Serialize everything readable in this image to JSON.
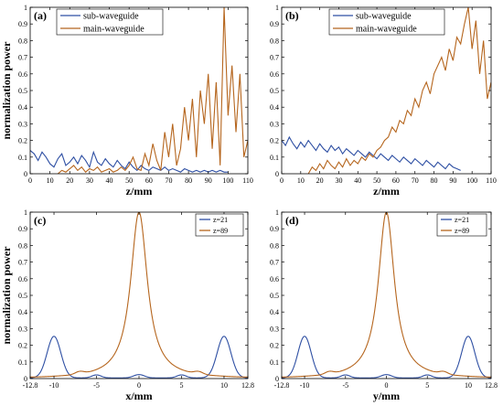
{
  "colors": {
    "blue": "#2e4fa3",
    "orange": "#b5651d",
    "red": "#e31a1c",
    "green": "#3aa93a"
  },
  "chart_data": [
    {
      "panel": "(a)",
      "type": "line",
      "xlabel": "z/mm",
      "ylabel": "normalization power",
      "xlim": [
        0,
        110
      ],
      "ylim": [
        0,
        1
      ],
      "xticks": [
        "0",
        "10",
        "20",
        "30",
        "40",
        "50",
        "60",
        "70",
        "80",
        "90",
        "100",
        "110"
      ],
      "yticks": [
        "0",
        "0.1",
        "0.2",
        "0.3",
        "0.4",
        "0.5",
        "0.6",
        "0.7",
        "0.8",
        "0.9",
        "1"
      ],
      "legend_position": "top-left",
      "series": [
        {
          "name": "sub-waveguide",
          "color": "#2e4fa3",
          "x": [
            0,
            2,
            4,
            6,
            8,
            10,
            12,
            14,
            16,
            18,
            20,
            22,
            24,
            26,
            28,
            30,
            32,
            34,
            36,
            38,
            40,
            42,
            44,
            46,
            48,
            50,
            52,
            54,
            56,
            58,
            60,
            62,
            64,
            66,
            68,
            70,
            72,
            74,
            76,
            78,
            80,
            82,
            84,
            86,
            88,
            90,
            92,
            94,
            96,
            98,
            100
          ],
          "y": [
            0.14,
            0.12,
            0.08,
            0.13,
            0.1,
            0.06,
            0.04,
            0.09,
            0.12,
            0.05,
            0.07,
            0.1,
            0.06,
            0.11,
            0.08,
            0.04,
            0.13,
            0.07,
            0.05,
            0.09,
            0.06,
            0.04,
            0.08,
            0.05,
            0.03,
            0.07,
            0.04,
            0.02,
            0.05,
            0.03,
            0.02,
            0.04,
            0.03,
            0.02,
            0.04,
            0.02,
            0.03,
            0.02,
            0.01,
            0.03,
            0.02,
            0.01,
            0.02,
            0.01,
            0.02,
            0.01,
            0.02,
            0.01,
            0.02,
            0.01,
            0.01
          ]
        },
        {
          "name": "main-waveguide",
          "color": "#b5651d",
          "x": [
            14,
            16,
            18,
            20,
            22,
            24,
            26,
            28,
            30,
            32,
            34,
            36,
            38,
            40,
            42,
            44,
            46,
            48,
            50,
            52,
            54,
            56,
            58,
            60,
            62,
            64,
            66,
            68,
            70,
            72,
            74,
            76,
            78,
            80,
            82,
            84,
            86,
            88,
            90,
            92,
            94,
            96,
            98,
            100,
            102,
            104,
            106,
            108,
            110
          ],
          "y": [
            0,
            0.02,
            0.01,
            0.03,
            0.05,
            0.02,
            0.04,
            0.01,
            0.03,
            0.02,
            0.04,
            0.01,
            0.02,
            0.03,
            0.01,
            0.02,
            0.04,
            0.02,
            0.05,
            0.1,
            0.03,
            0.02,
            0.12,
            0.05,
            0.18,
            0.08,
            0.02,
            0.25,
            0.1,
            0.3,
            0.05,
            0.15,
            0.4,
            0.2,
            0.45,
            0.1,
            0.5,
            0.3,
            0.6,
            0.15,
            0.55,
            0.05,
            1.0,
            0.35,
            0.65,
            0.25,
            0.6,
            0.1,
            0.2
          ]
        }
      ]
    },
    {
      "panel": "(b)",
      "type": "line",
      "xlabel": "z/mm",
      "ylabel": "",
      "xlim": [
        0,
        110
      ],
      "ylim": [
        0,
        1
      ],
      "xticks": [
        "0",
        "10",
        "20",
        "30",
        "40",
        "50",
        "60",
        "70",
        "80",
        "90",
        "100",
        "110"
      ],
      "yticks": [
        "0",
        "0.1",
        "0.2",
        "0.3",
        "0.4",
        "0.5",
        "0.6",
        "0.7",
        "0.8",
        "0.9",
        "1"
      ],
      "legend_position": "top-right",
      "series": [
        {
          "name": "sub-waveguide",
          "color": "#2e4fa3",
          "x": [
            0,
            2,
            4,
            6,
            8,
            10,
            12,
            14,
            16,
            18,
            20,
            22,
            24,
            26,
            28,
            30,
            32,
            34,
            36,
            38,
            40,
            42,
            44,
            46,
            48,
            50,
            52,
            54,
            56,
            58,
            60,
            62,
            64,
            66,
            68,
            70,
            72,
            74,
            76,
            78,
            80,
            82,
            84,
            86,
            88,
            90,
            92,
            94
          ],
          "y": [
            0.2,
            0.17,
            0.22,
            0.18,
            0.15,
            0.19,
            0.16,
            0.2,
            0.17,
            0.14,
            0.18,
            0.15,
            0.13,
            0.17,
            0.14,
            0.16,
            0.12,
            0.15,
            0.13,
            0.11,
            0.14,
            0.12,
            0.1,
            0.13,
            0.11,
            0.09,
            0.12,
            0.1,
            0.08,
            0.11,
            0.09,
            0.07,
            0.1,
            0.08,
            0.06,
            0.09,
            0.07,
            0.05,
            0.08,
            0.06,
            0.04,
            0.07,
            0.05,
            0.03,
            0.06,
            0.04,
            0.03,
            0.02
          ]
        },
        {
          "name": "main-waveguide",
          "color": "#b5651d",
          "x": [
            14,
            16,
            18,
            20,
            22,
            24,
            26,
            28,
            30,
            32,
            34,
            36,
            38,
            40,
            42,
            44,
            46,
            48,
            50,
            52,
            54,
            56,
            58,
            60,
            62,
            64,
            66,
            68,
            70,
            72,
            74,
            76,
            78,
            80,
            82,
            84,
            86,
            88,
            90,
            92,
            94,
            96,
            98,
            100,
            102,
            104,
            106,
            108,
            110
          ],
          "y": [
            0.0,
            0.04,
            0.02,
            0.06,
            0.03,
            0.08,
            0.05,
            0.03,
            0.07,
            0.04,
            0.09,
            0.05,
            0.08,
            0.06,
            0.1,
            0.08,
            0.12,
            0.1,
            0.14,
            0.16,
            0.2,
            0.22,
            0.28,
            0.25,
            0.32,
            0.3,
            0.38,
            0.35,
            0.45,
            0.4,
            0.5,
            0.55,
            0.48,
            0.6,
            0.65,
            0.7,
            0.62,
            0.75,
            0.68,
            0.82,
            0.78,
            0.9,
            1.0,
            0.75,
            0.92,
            0.6,
            0.8,
            0.45,
            0.55
          ]
        }
      ]
    },
    {
      "panel": "(c)",
      "type": "line",
      "xlabel": "x/mm",
      "ylabel": "normalization power",
      "xlim": [
        -12.8,
        12.8
      ],
      "ylim": [
        0,
        1
      ],
      "xticks": [
        "-12.8",
        "-10",
        "-5",
        "0",
        "5",
        "10",
        "12.8"
      ],
      "xtick_values": [
        -12.8,
        -10,
        -5,
        0,
        5,
        10,
        12.8
      ],
      "yticks": [
        "0",
        "0.1",
        "0.2",
        "0.3",
        "0.4",
        "0.5",
        "0.6",
        "0.7",
        "0.8",
        "0.9",
        "1"
      ],
      "legend_position": "top-right",
      "series": [
        {
          "name": "z=21",
          "color": "#2e4fa3",
          "profile": "side_lobes"
        },
        {
          "name": "z=89",
          "color": "#b5651d",
          "profile": "central_peak"
        }
      ]
    },
    {
      "panel": "(d)",
      "type": "line",
      "xlabel": "y/mm",
      "ylabel": "",
      "xlim": [
        -12.8,
        12.8
      ],
      "ylim": [
        0,
        1
      ],
      "xticks": [
        "-12.8",
        "-10",
        "-5",
        "0",
        "5",
        "10",
        "12.8"
      ],
      "xtick_values": [
        -12.8,
        -10,
        -5,
        0,
        5,
        10,
        12.8
      ],
      "yticks": [
        "0",
        "0.1",
        "0.2",
        "0.3",
        "0.4",
        "0.5",
        "0.6",
        "0.7",
        "0.8",
        "0.9",
        "1"
      ],
      "legend_position": "top-right",
      "series": [
        {
          "name": "z=21",
          "color": "#2e4fa3",
          "profile": "side_lobes"
        },
        {
          "name": "z=89",
          "color": "#b5651d",
          "profile": "central_peak"
        }
      ]
    }
  ]
}
